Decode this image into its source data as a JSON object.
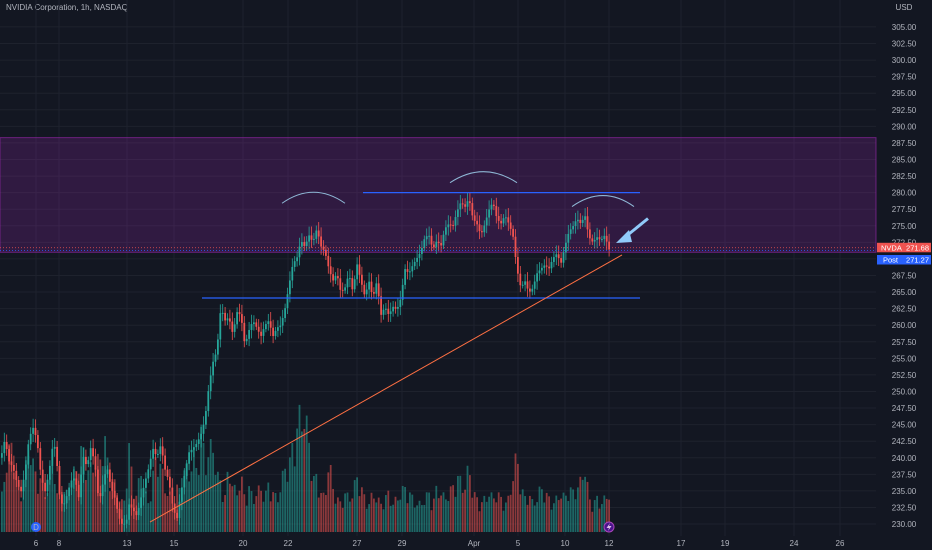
{
  "header": {
    "title": "NVIDIA Corporation, 1h, NASDAQ"
  },
  "axis": {
    "currency": "USD"
  },
  "price_tags": {
    "last_symbol": "NVDA",
    "last_value": "271.68",
    "post_label": "Post",
    "post_value": "271.27"
  },
  "colors": {
    "background": "#131722",
    "up": "#26a69a",
    "down": "#ef5350",
    "zone": "#9c27b0",
    "support": "#2962ff",
    "trendline": "#ff7043",
    "arrow": "#90caf9",
    "grid": "#1e222d"
  },
  "markers": {
    "dividend_icon": "D",
    "earnings_icon": "lightning"
  },
  "chart_data": {
    "type": "candlestick",
    "symbol": "NVDA",
    "timeframe": "1h",
    "exchange": "NASDAQ",
    "y_ticks": [
      230.0,
      232.5,
      235.0,
      237.5,
      240.0,
      242.5,
      245.0,
      247.5,
      250.0,
      252.5,
      255.0,
      257.5,
      260.0,
      262.5,
      265.0,
      267.5,
      270.0,
      272.5,
      275.0,
      277.5,
      280.0,
      282.5,
      285.0,
      287.5,
      290.0,
      292.5,
      295.0,
      297.5,
      300.0,
      302.5,
      305.0
    ],
    "y_tick_labels": [
      "230.00",
      "232.50",
      "235.00",
      "237.50",
      "240.00",
      "242.50",
      "245.00",
      "247.50",
      "250.00",
      "252.50",
      "255.00",
      "257.50",
      "260.00",
      "262.50",
      "265.00",
      "267.50",
      "270.00",
      "272.50",
      "275.00",
      "277.50",
      "280.00",
      "282.50",
      "285.00",
      "287.50",
      "290.00",
      "292.50",
      "295.00",
      "297.50",
      "300.00",
      "302.50",
      "305.00"
    ],
    "x_labels": [
      "6",
      "8",
      "13",
      "15",
      "20",
      "22",
      "27",
      "29",
      "Apr",
      "5",
      "10",
      "12",
      "17",
      "19",
      "24",
      "26"
    ],
    "close_path": [
      [
        0,
        240
      ],
      [
        4,
        242.8
      ],
      [
        8,
        239.5
      ],
      [
        12,
        238.6
      ],
      [
        16,
        236.3
      ],
      [
        20,
        234.8
      ],
      [
        24,
        237.7
      ],
      [
        28,
        242.8
      ],
      [
        32,
        244.6
      ],
      [
        36,
        242.8
      ],
      [
        40,
        237.4
      ],
      [
        44,
        234.8
      ],
      [
        48,
        237.7
      ],
      [
        52,
        242.0
      ],
      [
        55,
        241.4
      ],
      [
        58,
        234.8
      ],
      [
        62,
        232.5
      ],
      [
        66,
        234.3
      ],
      [
        70,
        236.5
      ],
      [
        74,
        237.0
      ],
      [
        78,
        233.9
      ],
      [
        82,
        240.4
      ],
      [
        86,
        238.6
      ],
      [
        90,
        241.6
      ],
      [
        94,
        239.1
      ],
      [
        98,
        233.2
      ],
      [
        102,
        236.1
      ],
      [
        106,
        238.7
      ],
      [
        110,
        235.6
      ],
      [
        114,
        233.9
      ],
      [
        118,
        231.0
      ],
      [
        122,
        229.7
      ],
      [
        126,
        230.7
      ],
      [
        128,
        233.0
      ],
      [
        132,
        232.2
      ],
      [
        136,
        231.2
      ],
      [
        140,
        233.9
      ],
      [
        144,
        236.3
      ],
      [
        148,
        238.6
      ],
      [
        152,
        241.4
      ],
      [
        156,
        240.1
      ],
      [
        160,
        242.0
      ],
      [
        164,
        238.3
      ],
      [
        168,
        236.5
      ],
      [
        172,
        232.5
      ],
      [
        176,
        230.7
      ],
      [
        180,
        234.8
      ],
      [
        184,
        237.7
      ],
      [
        188,
        240.8
      ],
      [
        192,
        241.4
      ],
      [
        196,
        242.2
      ],
      [
        200,
        243.5
      ],
      [
        204,
        245.8
      ],
      [
        208,
        250.8
      ],
      [
        212,
        254.4
      ],
      [
        216,
        256.2
      ],
      [
        220,
        262.8
      ],
      [
        224,
        260.7
      ],
      [
        228,
        261.2
      ],
      [
        232,
        258.6
      ],
      [
        236,
        262.0
      ],
      [
        240,
        261.5
      ],
      [
        244,
        256.9
      ],
      [
        248,
        259.2
      ],
      [
        252,
        260.7
      ],
      [
        256,
        259.6
      ],
      [
        260,
        258.3
      ],
      [
        264,
        260.0
      ],
      [
        268,
        260.7
      ],
      [
        272,
        258.3
      ],
      [
        276,
        259.6
      ],
      [
        280,
        260.0
      ],
      [
        284,
        262.4
      ],
      [
        288,
        265.9
      ],
      [
        292,
        269.3
      ],
      [
        296,
        270.1
      ],
      [
        300,
        272.8
      ],
      [
        304,
        271.8
      ],
      [
        308,
        273.6
      ],
      [
        312,
        272.5
      ],
      [
        316,
        274.6
      ],
      [
        320,
        271.9
      ],
      [
        324,
        271.1
      ],
      [
        328,
        268.5
      ],
      [
        332,
        266.7
      ],
      [
        336,
        267.8
      ],
      [
        340,
        264.9
      ],
      [
        344,
        265.6
      ],
      [
        348,
        267.8
      ],
      [
        352,
        265.0
      ],
      [
        356,
        269.3
      ],
      [
        360,
        266.7
      ],
      [
        364,
        264.3
      ],
      [
        368,
        266.7
      ],
      [
        372,
        264.1
      ],
      [
        376,
        266.7
      ],
      [
        380,
        261.5
      ],
      [
        384,
        262.8
      ],
      [
        388,
        261.5
      ],
      [
        392,
        262.8
      ],
      [
        396,
        262.3
      ],
      [
        400,
        264.1
      ],
      [
        404,
        268.5
      ],
      [
        408,
        267.8
      ],
      [
        412,
        269.1
      ],
      [
        416,
        270.1
      ],
      [
        420,
        271.1
      ],
      [
        424,
        273.3
      ],
      [
        428,
        273.6
      ],
      [
        432,
        271.4
      ],
      [
        436,
        272.8
      ],
      [
        440,
        271.9
      ],
      [
        444,
        274.6
      ],
      [
        448,
        275.3
      ],
      [
        452,
        274.9
      ],
      [
        456,
        277.1
      ],
      [
        460,
        278.6
      ],
      [
        464,
        277.8
      ],
      [
        468,
        279.2
      ],
      [
        472,
        276.1
      ],
      [
        476,
        275.3
      ],
      [
        480,
        273.6
      ],
      [
        484,
        275.3
      ],
      [
        488,
        277.4
      ],
      [
        492,
        278.6
      ],
      [
        496,
        276.1
      ],
      [
        500,
        275.3
      ],
      [
        504,
        276.6
      ],
      [
        508,
        275.3
      ],
      [
        512,
        273.6
      ],
      [
        516,
        268.5
      ],
      [
        520,
        265.6
      ],
      [
        524,
        266.7
      ],
      [
        528,
        264.9
      ],
      [
        532,
        265.6
      ],
      [
        536,
        267.8
      ],
      [
        540,
        268.5
      ],
      [
        544,
        269.1
      ],
      [
        548,
        268.5
      ],
      [
        552,
        270.1
      ],
      [
        556,
        270.8
      ],
      [
        560,
        269.3
      ],
      [
        564,
        271.9
      ],
      [
        568,
        274.1
      ],
      [
        572,
        274.9
      ],
      [
        576,
        276.1
      ],
      [
        580,
        275.3
      ],
      [
        584,
        276.6
      ],
      [
        588,
        273.3
      ],
      [
        592,
        272.5
      ],
      [
        596,
        273.3
      ],
      [
        600,
        272.8
      ],
      [
        604,
        273.6
      ],
      [
        608,
        271.4
      ],
      [
        610,
        271.7
      ]
    ],
    "volume_path": [
      [
        0,
        5
      ],
      [
        4,
        11
      ],
      [
        8,
        14
      ],
      [
        12,
        17
      ],
      [
        16,
        8
      ],
      [
        20,
        7
      ],
      [
        24,
        10
      ],
      [
        28,
        16
      ],
      [
        32,
        12
      ],
      [
        36,
        10
      ],
      [
        40,
        9
      ],
      [
        44,
        8
      ],
      [
        48,
        7
      ],
      [
        52,
        14
      ],
      [
        56,
        6
      ],
      [
        60,
        12
      ],
      [
        64,
        6
      ],
      [
        68,
        8
      ],
      [
        72,
        10
      ],
      [
        76,
        12
      ],
      [
        80,
        14
      ],
      [
        84,
        15
      ],
      [
        88,
        10
      ],
      [
        92,
        13
      ],
      [
        96,
        12
      ],
      [
        100,
        14
      ],
      [
        104,
        16
      ],
      [
        108,
        11
      ],
      [
        112,
        9
      ],
      [
        116,
        8
      ],
      [
        120,
        5
      ],
      [
        124,
        6
      ],
      [
        128,
        15
      ],
      [
        132,
        9
      ],
      [
        136,
        6
      ],
      [
        140,
        12
      ],
      [
        144,
        7
      ],
      [
        148,
        5
      ],
      [
        152,
        10
      ],
      [
        156,
        14
      ],
      [
        160,
        12
      ],
      [
        164,
        8
      ],
      [
        168,
        7
      ],
      [
        172,
        5
      ],
      [
        176,
        8
      ],
      [
        180,
        7
      ],
      [
        184,
        12
      ],
      [
        188,
        10
      ],
      [
        192,
        14
      ],
      [
        196,
        11
      ],
      [
        200,
        18
      ],
      [
        204,
        13
      ],
      [
        208,
        14
      ],
      [
        212,
        16
      ],
      [
        216,
        10
      ],
      [
        220,
        9
      ],
      [
        224,
        6
      ],
      [
        228,
        12
      ],
      [
        232,
        8
      ],
      [
        236,
        7
      ],
      [
        240,
        10
      ],
      [
        244,
        6
      ],
      [
        248,
        8
      ],
      [
        252,
        6
      ],
      [
        256,
        7
      ],
      [
        260,
        8
      ],
      [
        264,
        6
      ],
      [
        268,
        9
      ],
      [
        272,
        7
      ],
      [
        276,
        6
      ],
      [
        280,
        8
      ],
      [
        284,
        12
      ],
      [
        288,
        11
      ],
      [
        292,
        16
      ],
      [
        296,
        18
      ],
      [
        300,
        22
      ],
      [
        304,
        20
      ],
      [
        308,
        17
      ],
      [
        312,
        9
      ],
      [
        316,
        10
      ],
      [
        320,
        7
      ],
      [
        324,
        6
      ],
      [
        328,
        13
      ],
      [
        332,
        8
      ],
      [
        336,
        6
      ],
      [
        340,
        5
      ],
      [
        344,
        7
      ],
      [
        348,
        6
      ],
      [
        352,
        7
      ],
      [
        356,
        10
      ],
      [
        360,
        8
      ],
      [
        364,
        6
      ],
      [
        368,
        5
      ],
      [
        372,
        7
      ],
      [
        376,
        6
      ],
      [
        380,
        5
      ],
      [
        384,
        6
      ],
      [
        388,
        7
      ],
      [
        392,
        5
      ],
      [
        396,
        6
      ],
      [
        400,
        7
      ],
      [
        404,
        8
      ],
      [
        408,
        7
      ],
      [
        412,
        6
      ],
      [
        416,
        5
      ],
      [
        420,
        5
      ],
      [
        424,
        6
      ],
      [
        428,
        7
      ],
      [
        432,
        5
      ],
      [
        436,
        8
      ],
      [
        440,
        7
      ],
      [
        444,
        6
      ],
      [
        448,
        7
      ],
      [
        452,
        8
      ],
      [
        456,
        10
      ],
      [
        460,
        9
      ],
      [
        464,
        8
      ],
      [
        468,
        12
      ],
      [
        472,
        7
      ],
      [
        476,
        6
      ],
      [
        480,
        5
      ],
      [
        484,
        6
      ],
      [
        488,
        7
      ],
      [
        492,
        6
      ],
      [
        496,
        7
      ],
      [
        500,
        6
      ],
      [
        504,
        5
      ],
      [
        508,
        6
      ],
      [
        512,
        10
      ],
      [
        516,
        14
      ],
      [
        520,
        8
      ],
      [
        524,
        6
      ],
      [
        528,
        7
      ],
      [
        532,
        5
      ],
      [
        536,
        6
      ],
      [
        540,
        8
      ],
      [
        544,
        7
      ],
      [
        548,
        6
      ],
      [
        552,
        5
      ],
      [
        556,
        6
      ],
      [
        560,
        7
      ],
      [
        564,
        6
      ],
      [
        568,
        8
      ],
      [
        572,
        7
      ],
      [
        576,
        8
      ],
      [
        580,
        9
      ],
      [
        584,
        12
      ],
      [
        588,
        6
      ],
      [
        592,
        5
      ],
      [
        596,
        6
      ],
      [
        600,
        5
      ],
      [
        604,
        6
      ],
      [
        608,
        7
      ]
    ],
    "zone": {
      "low": 271.0,
      "high": 288.3
    },
    "support_levels": [
      {
        "price": 264.1,
        "x_start": 202,
        "x_end": 640
      },
      {
        "price": 280.0,
        "x_start": 363,
        "x_end": 640
      }
    ],
    "trendline": {
      "x1": 150,
      "p1": 230.3,
      "x2": 622,
      "p2": 270.6
    },
    "price_line": 271.68,
    "post_line": 271.27,
    "shoulders": [
      {
        "x1": 282,
        "x2": 345,
        "price": 278.4
      },
      {
        "x1": 450,
        "x2": 517,
        "price": 281.5
      },
      {
        "x1": 572,
        "x2": 634,
        "price": 277.9
      }
    ],
    "arrow": {
      "from_x": 648,
      "from_p": 276.1,
      "to_x": 616,
      "to_p": 272.4
    },
    "ylim": [
      228.8,
      306.8
    ]
  }
}
